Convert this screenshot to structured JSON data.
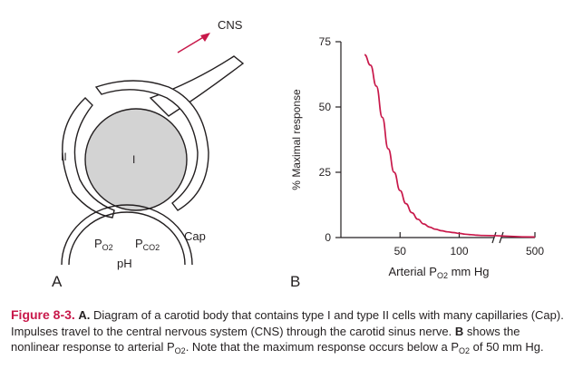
{
  "panel_a": {
    "label": "A",
    "cns_label": "CNS",
    "type1_label": "I",
    "type2_label": "II",
    "cap_label": "Cap",
    "po2_label": "P",
    "po2_sub": "O2",
    "pco2_label": "P",
    "pco2_sub": "CO2",
    "ph_label": "pH"
  },
  "panel_b": {
    "label": "B"
  },
  "chart_data": {
    "type": "line",
    "ylabel": "% Maximal response",
    "xlabel_prefix": "Arterial P",
    "xlabel_sub": "O2",
    "xlabel_suffix": " mm Hg",
    "ylim": [
      0,
      75
    ],
    "yticks": [
      "0",
      "25",
      "50",
      "75"
    ],
    "xticks": [
      "50",
      "100",
      "500"
    ],
    "axis_break": true,
    "series": [
      {
        "color": "#c8184a",
        "x": [
          20,
          25,
          30,
          35,
          40,
          45,
          50,
          55,
          60,
          65,
          70,
          75,
          80,
          85,
          90,
          95,
          100,
          105,
          110,
          115,
          120,
          500
        ],
        "y": [
          70,
          66,
          58,
          46,
          34,
          25,
          18,
          13,
          9.5,
          7,
          5.2,
          4,
          3.2,
          2.6,
          2.2,
          1.9,
          1.6,
          1.3,
          1.1,
          0.9,
          0.8,
          0.2
        ]
      }
    ]
  },
  "caption": {
    "fig_label": "Figure 8-3.",
    "part_a_label": "A.",
    "text1": " Diagram of a carotid body that contains type I and type II cells with many capillaries (Cap). Impulses travel to the central nervous system (CNS) through the carotid sinus nerve. ",
    "part_b_label": "B",
    "text2": " shows the nonlinear response to arterial P",
    "text2_sub": "O2",
    "text3": ". Note that the maximum response occurs below a P",
    "text3_sub": "O2",
    "text4": " of 50 mm Hg."
  }
}
